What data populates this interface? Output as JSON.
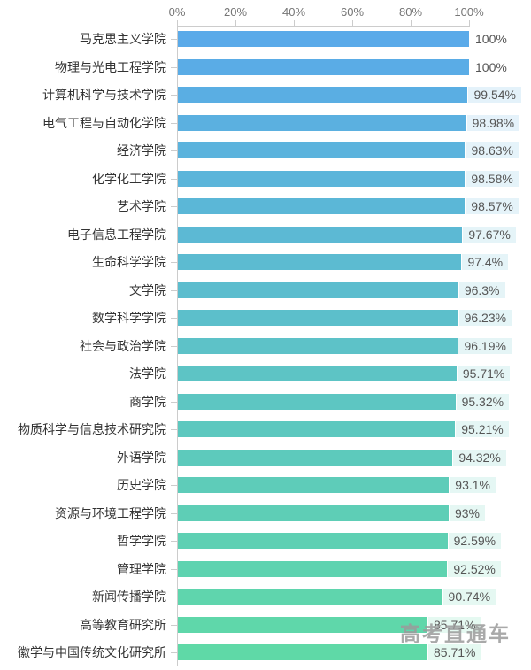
{
  "chart_data": {
    "type": "bar",
    "orientation": "horizontal",
    "title": "",
    "xlabel": "",
    "ylabel": "",
    "xlim": [
      0,
      100
    ],
    "x_ticks": [
      "0%",
      "20%",
      "40%",
      "60%",
      "80%",
      "100%"
    ],
    "grid": false,
    "legend": "none",
    "axis_position": "top",
    "categories": [
      "马克思主义学院",
      "物理与光电工程学院",
      "计算机科学与技术学院",
      "电气工程与自动化学院",
      "经济学院",
      "化学化工学院",
      "艺术学院",
      "电子信息工程学院",
      "生命科学学院",
      "文学院",
      "数学科学学院",
      "社会与政治学院",
      "法学院",
      "商学院",
      "物质科学与信息技术研究院",
      "外语学院",
      "历史学院",
      "资源与环境工程学院",
      "哲学学院",
      "管理学院",
      "新闻传播学院",
      "高等教育研究所",
      "徽学与中国传统文化研究所"
    ],
    "values": [
      100,
      100,
      99.54,
      98.98,
      98.63,
      98.58,
      98.57,
      97.67,
      97.4,
      96.3,
      96.23,
      96.19,
      95.71,
      95.32,
      95.21,
      94.32,
      93.1,
      93,
      92.59,
      92.52,
      90.74,
      85.71,
      85.71
    ],
    "value_labels": [
      "100%",
      "100%",
      "99.54%",
      "98.98%",
      "98.63%",
      "98.58%",
      "98.57%",
      "97.67%",
      "97.4%",
      "96.3%",
      "96.23%",
      "96.19%",
      "95.71%",
      "95.32%",
      "95.21%",
      "94.32%",
      "93.1%",
      "93%",
      "92.59%",
      "92.52%",
      "90.74%",
      "85.71%",
      "85.71%"
    ],
    "bar_color_start": "#5AAAE9",
    "bar_color_end": "#5FD9A7",
    "axis_line_color": "#CCCCCC",
    "tick_label_color": "#757575",
    "category_label_color": "#333333",
    "value_label_color": "#555555"
  },
  "watermark": {
    "text": "高考直通车",
    "color": "#9B9B9B"
  }
}
